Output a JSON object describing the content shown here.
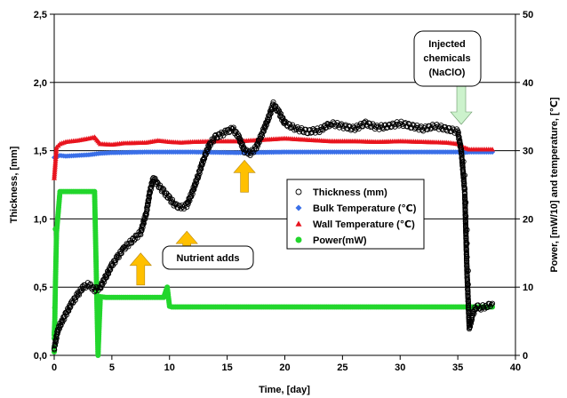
{
  "chart_data": {
    "type": "scatter",
    "xlabel": "Time, [day]",
    "ylabel_left": "Thickness, [mm]",
    "ylabel_right": "Power, [mW/10] and temperature, [℃]",
    "xlim": [
      0,
      40
    ],
    "ylim_left": [
      0,
      2.5
    ],
    "ylim_right": [
      0,
      50
    ],
    "x_ticks": [
      "0",
      "5",
      "10",
      "15",
      "20",
      "25",
      "30",
      "35",
      "40"
    ],
    "y_ticks_left": [
      "0,0",
      "0,5",
      "1,0",
      "1,5",
      "2,0",
      "2,5"
    ],
    "y_ticks_right": [
      "0",
      "10",
      "20",
      "30",
      "40",
      "50"
    ],
    "grid": "horizontal",
    "legend_position": "center-right",
    "series": [
      {
        "name": "Thickness (mm)",
        "axis": "left",
        "marker": "open-circle",
        "color": "#000000",
        "x": [
          0,
          0.3,
          0.5,
          1,
          1.5,
          2,
          2.5,
          3,
          3.5,
          4,
          4.5,
          5,
          5.5,
          6,
          6.5,
          7,
          7.5,
          8,
          8.3,
          8.6,
          9,
          9.5,
          10,
          10.5,
          11,
          11.5,
          12,
          12.5,
          13,
          13.5,
          14,
          14.5,
          15,
          15.5,
          16,
          16.5,
          17,
          17.5,
          18,
          18.5,
          19,
          19.5,
          20,
          21,
          22,
          23,
          24,
          25,
          26,
          27,
          28,
          29,
          30,
          31,
          32,
          33,
          34,
          35,
          35.3,
          35.6,
          35.8,
          36,
          36.3,
          36.6,
          37,
          37.5,
          38
        ],
        "y": [
          0.05,
          0.18,
          0.22,
          0.3,
          0.38,
          0.44,
          0.5,
          0.52,
          0.48,
          0.5,
          0.58,
          0.66,
          0.72,
          0.78,
          0.82,
          0.86,
          0.9,
          1.05,
          1.2,
          1.3,
          1.25,
          1.2,
          1.15,
          1.1,
          1.08,
          1.1,
          1.2,
          1.32,
          1.45,
          1.55,
          1.6,
          1.62,
          1.64,
          1.66,
          1.6,
          1.5,
          1.48,
          1.52,
          1.62,
          1.72,
          1.84,
          1.78,
          1.7,
          1.66,
          1.64,
          1.65,
          1.7,
          1.68,
          1.66,
          1.7,
          1.67,
          1.68,
          1.7,
          1.68,
          1.66,
          1.68,
          1.66,
          1.64,
          1.5,
          1.2,
          0.6,
          0.2,
          0.3,
          0.36,
          0.35,
          0.36,
          0.38
        ],
        "scatter_x": [
          35.5,
          35.6,
          35.6,
          35.7,
          35.7,
          35.8,
          35.8,
          35.8,
          35.9,
          35.9
        ],
        "scatter_y": [
          1.42,
          1.32,
          1.22,
          1.12,
          1.02,
          0.92,
          0.82,
          0.72,
          0.62,
          0.52
        ]
      },
      {
        "name": "Bulk Temperature (℃)",
        "axis": "right",
        "marker": "diamond",
        "color": "#3a6fe8",
        "x": [
          0,
          0.5,
          1,
          2,
          3,
          3.5,
          4,
          5,
          8,
          12,
          16,
          20,
          25,
          30,
          35,
          35.5,
          36,
          37,
          38
        ],
        "y": [
          29,
          29.3,
          29.2,
          29.3,
          29.4,
          29.5,
          29.6,
          29.7,
          29.8,
          29.8,
          29.7,
          29.8,
          29.8,
          29.8,
          29.8,
          29.7,
          29.8,
          29.8,
          29.8
        ]
      },
      {
        "name": "Wall Temperature (℃)",
        "axis": "right",
        "marker": "triangle",
        "color": "#e8141e",
        "x": [
          0,
          0.2,
          0.5,
          1,
          2,
          3,
          3.5,
          4,
          5,
          6,
          8,
          9,
          10,
          11,
          12,
          14,
          16,
          18,
          20,
          22,
          24,
          26,
          28,
          30,
          32,
          34,
          35,
          35.5,
          36,
          37,
          38
        ],
        "y": [
          26,
          30.5,
          31,
          31.3,
          31.5,
          31.8,
          32,
          31,
          30.9,
          31.1,
          31.2,
          31.5,
          31.3,
          31.2,
          31.3,
          31.4,
          31.4,
          31.6,
          31.8,
          31.6,
          31.4,
          31.4,
          31.3,
          31.4,
          31.3,
          31.2,
          31.0,
          30.5,
          30.2,
          30.2,
          30.2
        ]
      },
      {
        "name": "Power(mW)",
        "axis": "right",
        "marker": "circle",
        "color": "#22d62c",
        "x": [
          0,
          0.05,
          0.1,
          0.2,
          0.5,
          1,
          2,
          3,
          3.5,
          3.8,
          3.9,
          4,
          4.5,
          5,
          6,
          7,
          8,
          9,
          9.5,
          9.8,
          10,
          10.2,
          12,
          15,
          18,
          20,
          25,
          30,
          35,
          36,
          37,
          38
        ],
        "y": [
          3,
          5,
          10,
          18,
          24,
          24,
          24,
          24,
          24,
          0,
          4.5,
          8.6,
          8.5,
          8.5,
          8.5,
          8.5,
          8.5,
          8.5,
          8.5,
          10,
          7.2,
          7.1,
          7.1,
          7.1,
          7.1,
          7.1,
          7.1,
          7.1,
          7.1,
          7.1,
          7.1,
          7.1
        ],
        "scatter_x": [
          0,
          0,
          0,
          0.05,
          0.1
        ],
        "scatter_y": [
          0.5,
          1.2,
          2.5,
          7,
          18.5
        ]
      }
    ],
    "annotations": [
      {
        "text_lines": [
          "Injected",
          "chemicals",
          "(NaClO)"
        ],
        "arrow_color": "#ccf2cc",
        "arrow_x": 35.3
      },
      {
        "text": "Nutrient adds",
        "arrow_color": "#ffc000",
        "arrow_x": [
          7.5,
          11.5,
          16.5
        ]
      }
    ]
  }
}
